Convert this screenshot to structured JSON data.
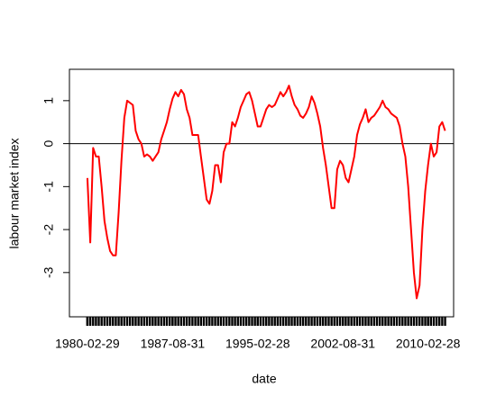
{
  "chart_data": {
    "type": "line",
    "xlabel": "date",
    "ylabel": "labour market index",
    "x": [
      "1980-02-29",
      "1980-05-31",
      "1980-08-31",
      "1980-11-30",
      "1981-02-28",
      "1981-05-31",
      "1981-08-31",
      "1981-11-30",
      "1982-02-28",
      "1982-05-31",
      "1982-08-31",
      "1982-11-30",
      "1983-02-28",
      "1983-05-31",
      "1983-08-31",
      "1983-11-30",
      "1984-02-29",
      "1984-05-31",
      "1984-08-31",
      "1984-11-30",
      "1985-02-28",
      "1985-05-31",
      "1985-08-31",
      "1985-11-30",
      "1986-02-28",
      "1986-05-31",
      "1986-08-31",
      "1986-11-30",
      "1987-02-28",
      "1987-05-31",
      "1987-08-31",
      "1987-11-30",
      "1988-02-29",
      "1988-05-31",
      "1988-08-31",
      "1988-11-30",
      "1989-02-28",
      "1989-05-31",
      "1989-08-31",
      "1989-11-30",
      "1990-02-28",
      "1990-05-31",
      "1990-08-31",
      "1990-11-30",
      "1991-02-28",
      "1991-05-31",
      "1991-08-31",
      "1991-11-30",
      "1992-02-29",
      "1992-05-31",
      "1992-08-31",
      "1992-11-30",
      "1993-02-28",
      "1993-05-31",
      "1993-08-31",
      "1993-11-30",
      "1994-02-28",
      "1994-05-31",
      "1994-08-31",
      "1994-11-30",
      "1995-02-28",
      "1995-05-31",
      "1995-08-31",
      "1995-11-30",
      "1996-02-29",
      "1996-05-31",
      "1996-08-31",
      "1996-11-30",
      "1997-02-28",
      "1997-05-31",
      "1997-08-31",
      "1997-11-30",
      "1998-02-28",
      "1998-05-31",
      "1998-08-31",
      "1998-11-30",
      "1999-02-28",
      "1999-05-31",
      "1999-08-31",
      "1999-11-30",
      "2000-02-29",
      "2000-05-31",
      "2000-08-31",
      "2000-11-30",
      "2001-02-28",
      "2001-05-31",
      "2001-08-31",
      "2001-11-30",
      "2002-02-28",
      "2002-05-31",
      "2002-08-31",
      "2002-11-30",
      "2003-02-28",
      "2003-05-31",
      "2003-08-31",
      "2003-11-30",
      "2004-02-29",
      "2004-05-31",
      "2004-08-31",
      "2004-11-30",
      "2005-02-28",
      "2005-05-31",
      "2005-08-31",
      "2005-11-30",
      "2006-02-28",
      "2006-05-31",
      "2006-08-31",
      "2006-11-30",
      "2007-02-28",
      "2007-05-31",
      "2007-08-31",
      "2007-11-30",
      "2008-02-29",
      "2008-05-31",
      "2008-08-31",
      "2008-11-30",
      "2009-02-28",
      "2009-05-31",
      "2009-08-31",
      "2009-11-30",
      "2010-02-28",
      "2010-05-31",
      "2010-08-31",
      "2010-11-30",
      "2011-02-28",
      "2011-05-31",
      "2011-08-31"
    ],
    "values": [
      -0.8,
      -2.3,
      -0.1,
      -0.3,
      -0.3,
      -1.0,
      -1.8,
      -2.2,
      -2.5,
      -2.6,
      -2.6,
      -1.6,
      -0.4,
      0.6,
      1.0,
      0.95,
      0.9,
      0.3,
      0.1,
      0.0,
      -0.3,
      -0.25,
      -0.3,
      -0.4,
      -0.3,
      -0.2,
      0.1,
      0.3,
      0.5,
      0.8,
      1.05,
      1.2,
      1.1,
      1.25,
      1.15,
      0.8,
      0.6,
      0.2,
      0.2,
      0.2,
      -0.3,
      -0.8,
      -1.3,
      -1.4,
      -1.1,
      -0.5,
      -0.5,
      -0.9,
      -0.2,
      0.0,
      0.0,
      0.5,
      0.4,
      0.6,
      0.85,
      1.0,
      1.15,
      1.2,
      1.0,
      0.7,
      0.4,
      0.4,
      0.6,
      0.8,
      0.9,
      0.85,
      0.9,
      1.05,
      1.2,
      1.1,
      1.2,
      1.35,
      1.1,
      0.9,
      0.8,
      0.65,
      0.6,
      0.7,
      0.85,
      1.1,
      0.95,
      0.7,
      0.4,
      -0.1,
      -0.5,
      -1.0,
      -1.5,
      -1.5,
      -0.6,
      -0.4,
      -0.5,
      -0.8,
      -0.9,
      -0.6,
      -0.3,
      0.2,
      0.45,
      0.6,
      0.8,
      0.5,
      0.6,
      0.65,
      0.75,
      0.85,
      1.0,
      0.85,
      0.8,
      0.7,
      0.65,
      0.6,
      0.4,
      0.0,
      -0.3,
      -1.0,
      -2.0,
      -3.0,
      -3.6,
      -3.3,
      -2.0,
      -1.1,
      -0.5,
      0.0,
      -0.3,
      -0.2,
      0.4,
      0.5,
      0.3
    ],
    "color": "#ff0000",
    "xlim": [
      "1978-07-31",
      "2012-05-31"
    ],
    "xticks": [
      "1980-02-29",
      "1987-08-31",
      "1995-02-28",
      "2002-08-31",
      "2010-02-28"
    ],
    "ylim": [
      -4.03,
      1.73
    ],
    "yticks": [
      -3,
      -2,
      -1,
      0,
      1
    ],
    "reference_line": 0
  }
}
